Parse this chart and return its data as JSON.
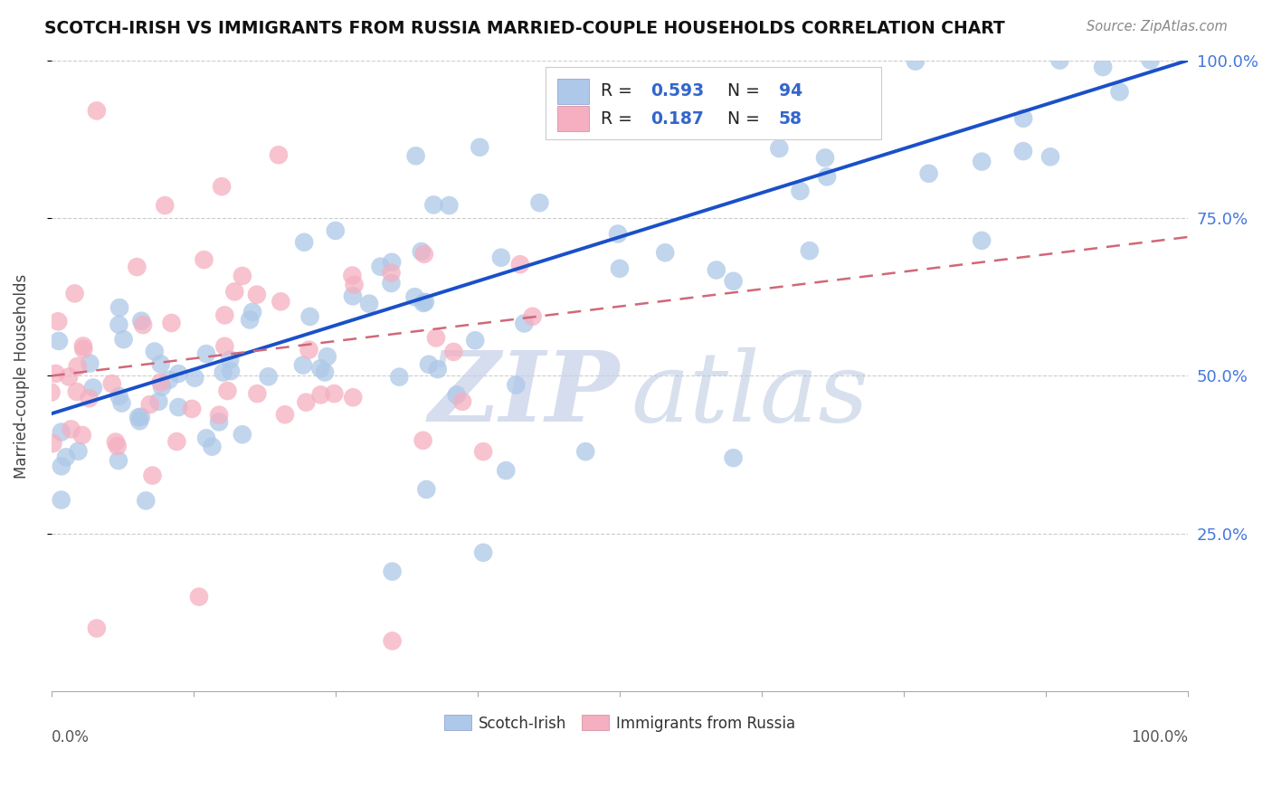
{
  "title": "SCOTCH-IRISH VS IMMIGRANTS FROM RUSSIA MARRIED-COUPLE HOUSEHOLDS CORRELATION CHART",
  "source": "Source: ZipAtlas.com",
  "ylabel": "Married-couple Households",
  "legend_labels": [
    "Scotch-Irish",
    "Immigrants from Russia"
  ],
  "R_blue": 0.593,
  "N_blue": 94,
  "R_pink": 0.187,
  "N_pink": 58,
  "blue_color": "#adc8e8",
  "pink_color": "#f5afc0",
  "blue_line_color": "#1a50c8",
  "pink_line_color": "#d06878",
  "watermark_zip": "ZIP",
  "watermark_atlas": "atlas",
  "xlim": [
    0,
    1
  ],
  "ylim": [
    0,
    1
  ],
  "yticks": [
    0.25,
    0.5,
    0.75,
    1.0
  ],
  "ytick_labels": [
    "25.0%",
    "50.0%",
    "75.0%",
    "100.0%"
  ],
  "xtick_labels_left": "0.0%",
  "xtick_labels_right": "100.0%"
}
